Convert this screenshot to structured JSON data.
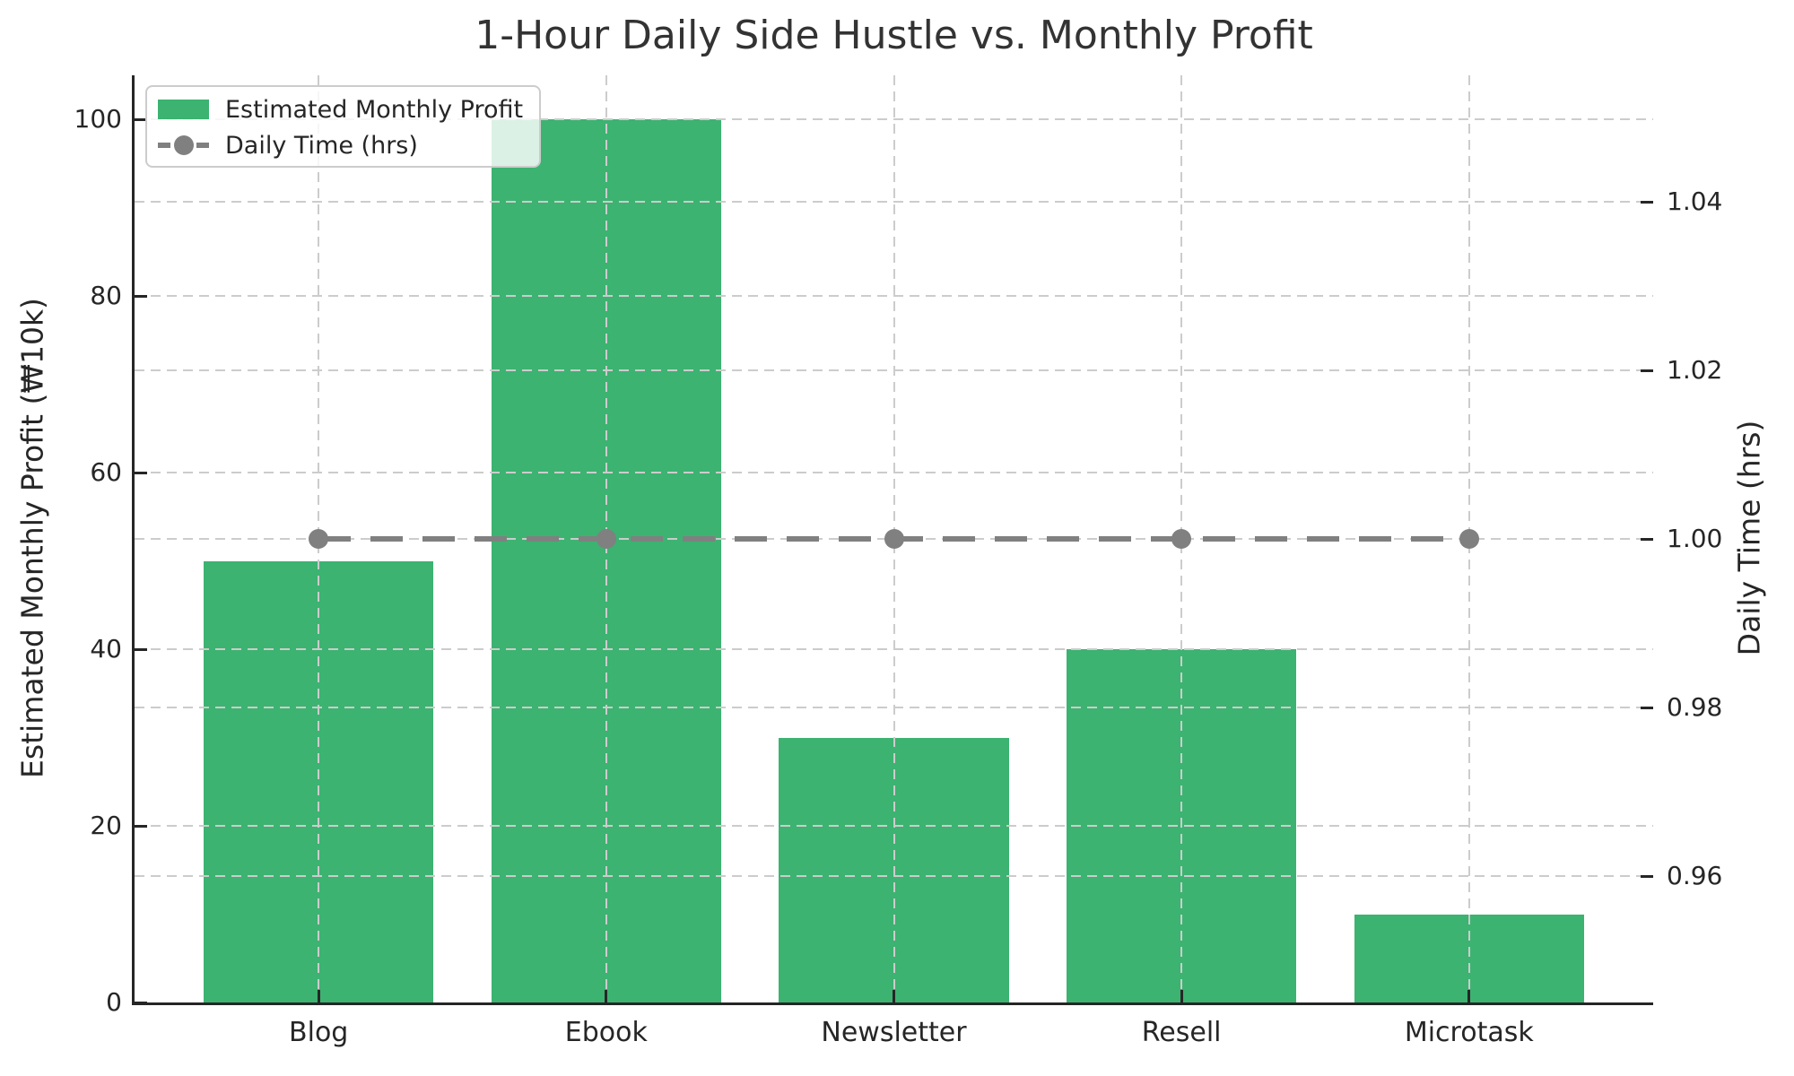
{
  "title": "1-Hour Daily Side Hustle vs. Monthly Profit",
  "chart_data": {
    "type": "bar",
    "title": "1-Hour Daily Side Hustle vs. Monthly Profit",
    "categories": [
      "Blog",
      "Ebook",
      "Newsletter",
      "Resell",
      "Microtask"
    ],
    "series": [
      {
        "name": "Estimated Monthly Profit",
        "type": "bar",
        "axis": "left",
        "values": [
          50,
          100,
          30,
          40,
          10
        ],
        "color": "#3cb371"
      },
      {
        "name": "Daily Time (hrs)",
        "type": "line",
        "axis": "right",
        "values": [
          1.0,
          1.0,
          1.0,
          1.0,
          1.0
        ],
        "color": "#808080",
        "linestyle": "dashed",
        "marker": "circle"
      }
    ],
    "left_axis": {
      "label": "Estimated Monthly Profit (₩10k)",
      "ticks": [
        0,
        20,
        40,
        60,
        80,
        100
      ],
      "tick_labels": [
        "0",
        "20",
        "40",
        "60",
        "80",
        "100"
      ],
      "range": [
        0,
        105
      ]
    },
    "right_axis": {
      "label": "Daily Time (hrs)",
      "ticks": [
        0.96,
        0.98,
        1.0,
        1.02,
        1.04
      ],
      "tick_labels": [
        "0.96",
        "0.98",
        "1.00",
        "1.02",
        "1.04"
      ],
      "range": [
        0.945,
        1.055
      ]
    },
    "x_axis": {
      "range_units": [
        -0.64,
        4.64
      ],
      "bar_width_units": 0.8
    },
    "legend": {
      "position": "upper left",
      "items": [
        {
          "label": "Estimated Monthly Profit",
          "type": "bar"
        },
        {
          "label": "Daily Time (hrs)",
          "type": "line"
        }
      ]
    },
    "grid": {
      "on": true,
      "style": "dashed",
      "color": "#cccccc"
    }
  },
  "colors": {
    "bar": "#3cb371",
    "line": "#808080",
    "grid": "#cccccc",
    "axis": "#262626",
    "title": "#333333",
    "legend_border": "#cccccc"
  }
}
